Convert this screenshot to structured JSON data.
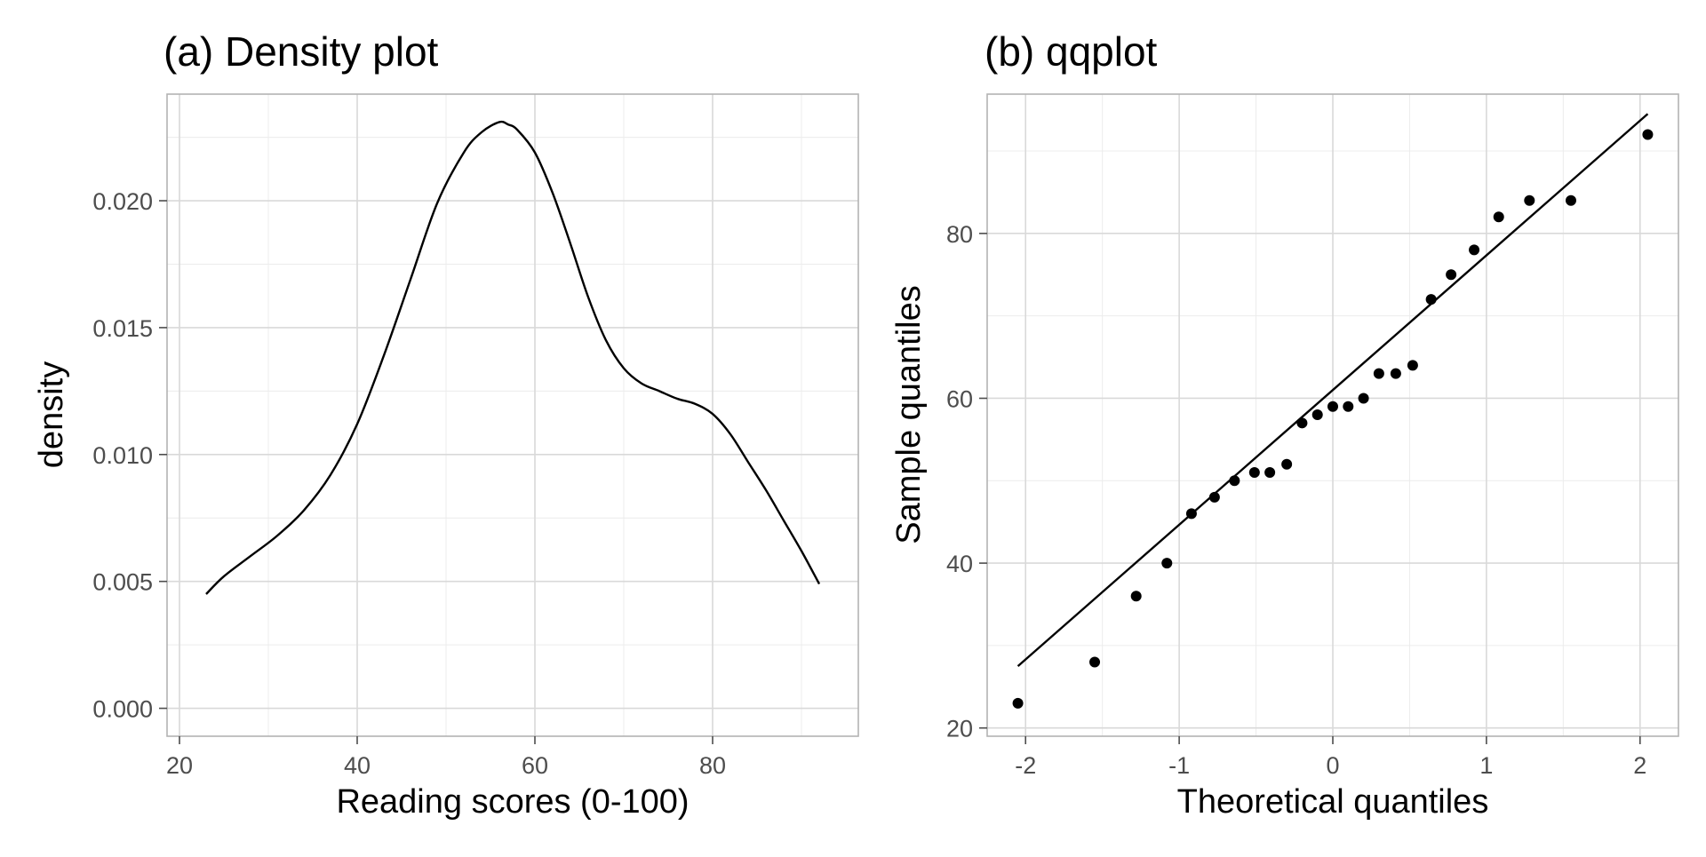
{
  "chart_data": [
    {
      "type": "line",
      "title": "(a) Density plot",
      "xlabel": "Reading scores (0-100)",
      "ylabel": "density",
      "xlim": [
        18.6,
        96.4
      ],
      "ylim": [
        -0.0011,
        0.0242
      ],
      "xticks": [
        20,
        40,
        60,
        80
      ],
      "xtick_labels": [
        "20",
        "40",
        "60",
        "80"
      ],
      "yticks": [
        0.0,
        0.005,
        0.01,
        0.015,
        0.02
      ],
      "ytick_labels": [
        "0.000",
        "0.005",
        "0.010",
        "0.015",
        "0.020"
      ],
      "grid": true,
      "series": [
        {
          "x": [
            23,
            25,
            28,
            31,
            34,
            37,
            40,
            43,
            46,
            49,
            52,
            54,
            56,
            57,
            58,
            60,
            62,
            64,
            66,
            68,
            70,
            72,
            74,
            76,
            78,
            80,
            82,
            84,
            86,
            88,
            90,
            92
          ],
          "y": [
            0.0045,
            0.0052,
            0.006,
            0.0068,
            0.0078,
            0.0092,
            0.0112,
            0.0139,
            0.0169,
            0.0199,
            0.0219,
            0.0227,
            0.0231,
            0.023,
            0.0228,
            0.0219,
            0.0203,
            0.0183,
            0.0162,
            0.0145,
            0.0134,
            0.0128,
            0.0125,
            0.0122,
            0.012,
            0.0116,
            0.0108,
            0.0097,
            0.0086,
            0.0074,
            0.0062,
            0.0049
          ]
        }
      ]
    },
    {
      "type": "scatter",
      "title": "(b) qqplot",
      "xlabel": "Theoretical quantiles",
      "ylabel": "Sample quantiles",
      "xlim": [
        -2.25,
        2.25
      ],
      "ylim": [
        19.0,
        96.9
      ],
      "xticks": [
        -2,
        -1,
        0,
        1,
        2
      ],
      "xtick_labels": [
        "-2",
        "-1",
        "0",
        "1",
        "2"
      ],
      "yticks": [
        20,
        40,
        60,
        80
      ],
      "ytick_labels": [
        "20",
        "40",
        "60",
        "80"
      ],
      "grid": true,
      "points": {
        "x": [
          -2.05,
          -1.55,
          -1.28,
          -1.08,
          -0.92,
          -0.77,
          -0.64,
          -0.51,
          -0.41,
          -0.3,
          -0.2,
          -0.1,
          0.0,
          0.1,
          0.2,
          0.3,
          0.41,
          0.52,
          0.64,
          0.77,
          0.92,
          1.08,
          1.28,
          1.55,
          2.05
        ],
        "y": [
          23,
          28,
          36,
          40,
          46,
          48,
          50,
          51,
          51,
          52,
          57,
          58,
          59,
          59,
          60,
          63,
          63,
          64,
          72,
          75,
          78,
          82,
          84,
          84,
          92
        ]
      },
      "reference_line": {
        "x": [
          -2.05,
          2.05
        ],
        "y": [
          27.5,
          94.5
        ]
      }
    }
  ]
}
